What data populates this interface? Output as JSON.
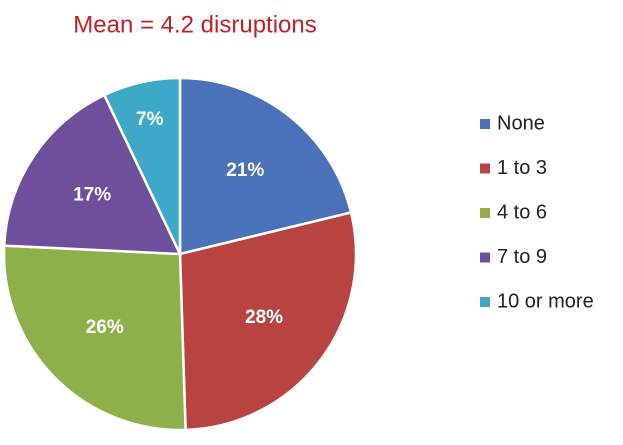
{
  "chart_data": {
    "type": "pie",
    "title": "Mean = 4.2 disruptions",
    "categories": [
      "None",
      "1 to 3",
      "4 to 6",
      "7 to 9",
      "10 or more"
    ],
    "values": [
      21,
      28,
      26,
      17,
      7
    ],
    "value_labels": [
      "21%",
      "28%",
      "26%",
      "17%",
      "7%"
    ],
    "colors": [
      "#4a72b8",
      "#b94340",
      "#8eb04a",
      "#6e4f9b",
      "#3ea8c8"
    ],
    "legend": "right"
  }
}
